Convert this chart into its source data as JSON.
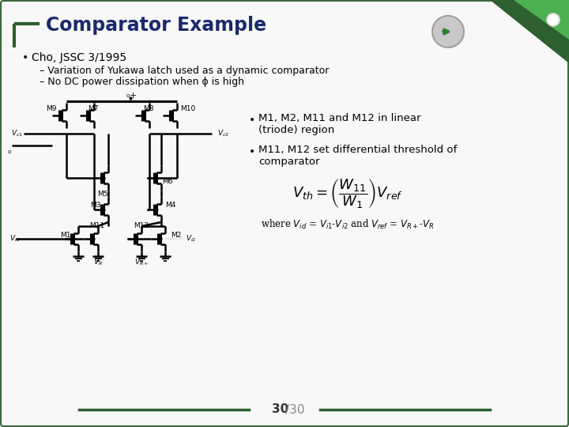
{
  "title": "Comparator Example",
  "title_color": "#1a2a6b",
  "bg_color": "#f8f8f8",
  "border_color": "#3a6b3a",
  "slide_number": "30",
  "slide_total": "/30",
  "bullet1": "Cho, JSSC 3/1995",
  "sub1": "Variation of Yukawa latch used as a dynamic comparator",
  "sub2": "No DC power dissipation when ϕ is high",
  "right_bullet1": "M1, M2, M11 and M12 in linear\n(triode) region",
  "right_bullet2": "M11, M12 set differential threshold of\ncomparator",
  "formula": "$V_{th} = \\left(\\dfrac{W_{11}}{W_1}\\right)V_{ref}$",
  "where_text": "where $V_{id}$ = $V_{i1}$-$V_{i2}$ and $V_{ref}$ = $V_{R+}$-$V_R$",
  "footer_line_color": "#2e5f2e",
  "title_bar_color": "#2e5f2e"
}
